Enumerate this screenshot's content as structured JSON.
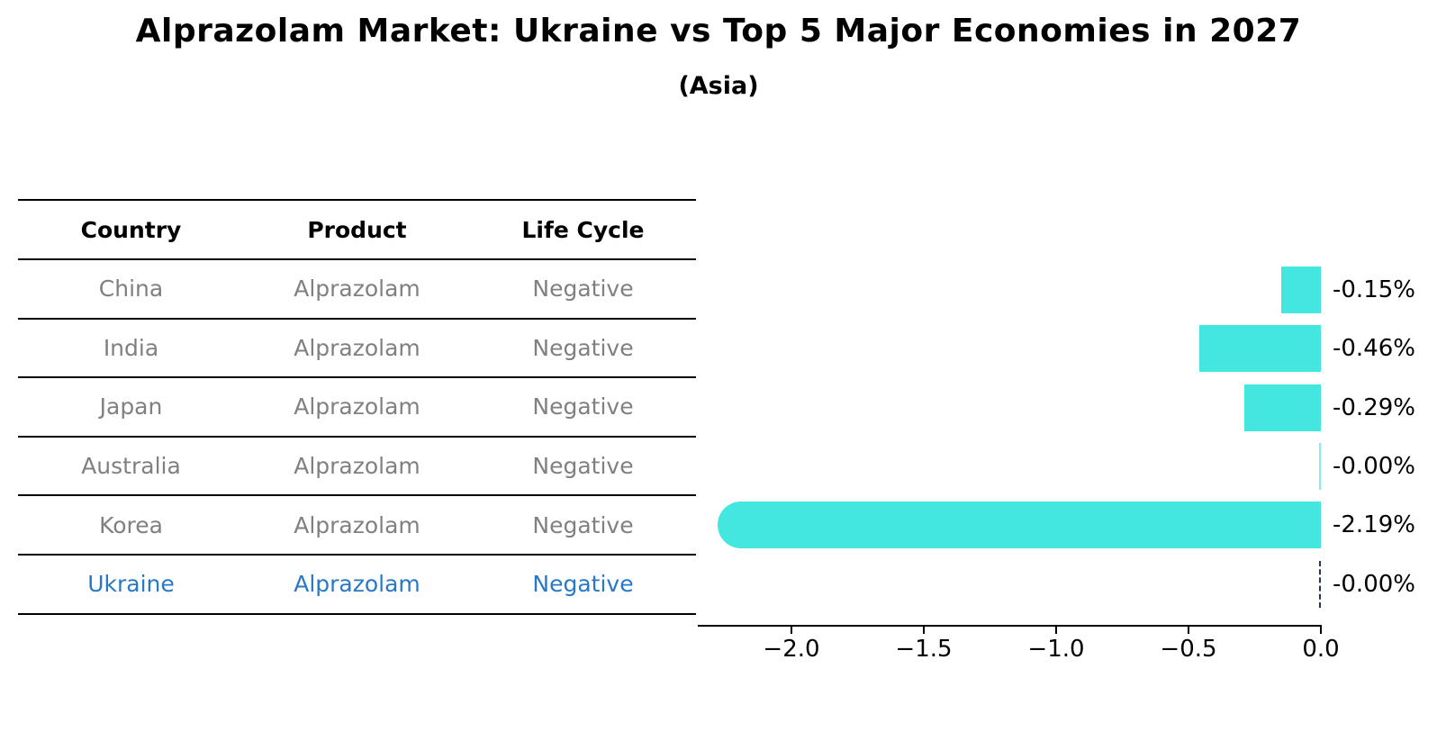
{
  "header": {
    "title": "Alprazolam Market: Ukraine vs Top 5 Major Economies in 2027",
    "subtitle": "(Asia)"
  },
  "table": {
    "columns": [
      "Country",
      "Product",
      "Life Cycle"
    ],
    "rows": [
      {
        "country": "China",
        "product": "Alprazolam",
        "life_cycle": "Negative",
        "highlight": false
      },
      {
        "country": "India",
        "product": "Alprazolam",
        "life_cycle": "Negative",
        "highlight": false
      },
      {
        "country": "Japan",
        "product": "Alprazolam",
        "life_cycle": "Negative",
        "highlight": false
      },
      {
        "country": "Australia",
        "product": "Alprazolam",
        "life_cycle": "Negative",
        "highlight": false
      },
      {
        "country": "Korea",
        "product": "Alprazolam",
        "life_cycle": "Negative",
        "highlight": false
      },
      {
        "country": "Ukraine",
        "product": "Alprazolam",
        "life_cycle": "Negative",
        "highlight": true
      }
    ]
  },
  "chart_data": {
    "type": "bar",
    "orientation": "horizontal",
    "title": "Alprazolam Market: Ukraine vs Top 5 Major Economies in 2027",
    "subtitle": "(Asia)",
    "xlabel": "",
    "ylabel": "",
    "categories": [
      "China",
      "India",
      "Japan",
      "Australia",
      "Korea",
      "Ukraine"
    ],
    "values": [
      -0.15,
      -0.46,
      -0.29,
      -0.0,
      -2.19,
      -0.0
    ],
    "value_labels": [
      "-0.15%",
      "-0.46%",
      "-0.29%",
      "-0.00%",
      "-2.19%",
      "-0.00%"
    ],
    "bar_styles": [
      "square",
      "square",
      "square",
      "sliver",
      "rounded",
      "dashed-outline"
    ],
    "xlim": [
      -2.354,
      0
    ],
    "x_ticks": [
      -2.0,
      -1.5,
      -1.0,
      -0.5,
      0.0
    ],
    "x_tick_labels": [
      "−2.0",
      "−1.5",
      "−1.0",
      "−0.5",
      "0.0"
    ],
    "grid": false,
    "legend": "none",
    "colors": {
      "bar": "#44E6E0",
      "highlight_text": "#2878C8",
      "dashed_outline": "#24364F",
      "axis": "#000000",
      "row_text": "#808080"
    }
  }
}
